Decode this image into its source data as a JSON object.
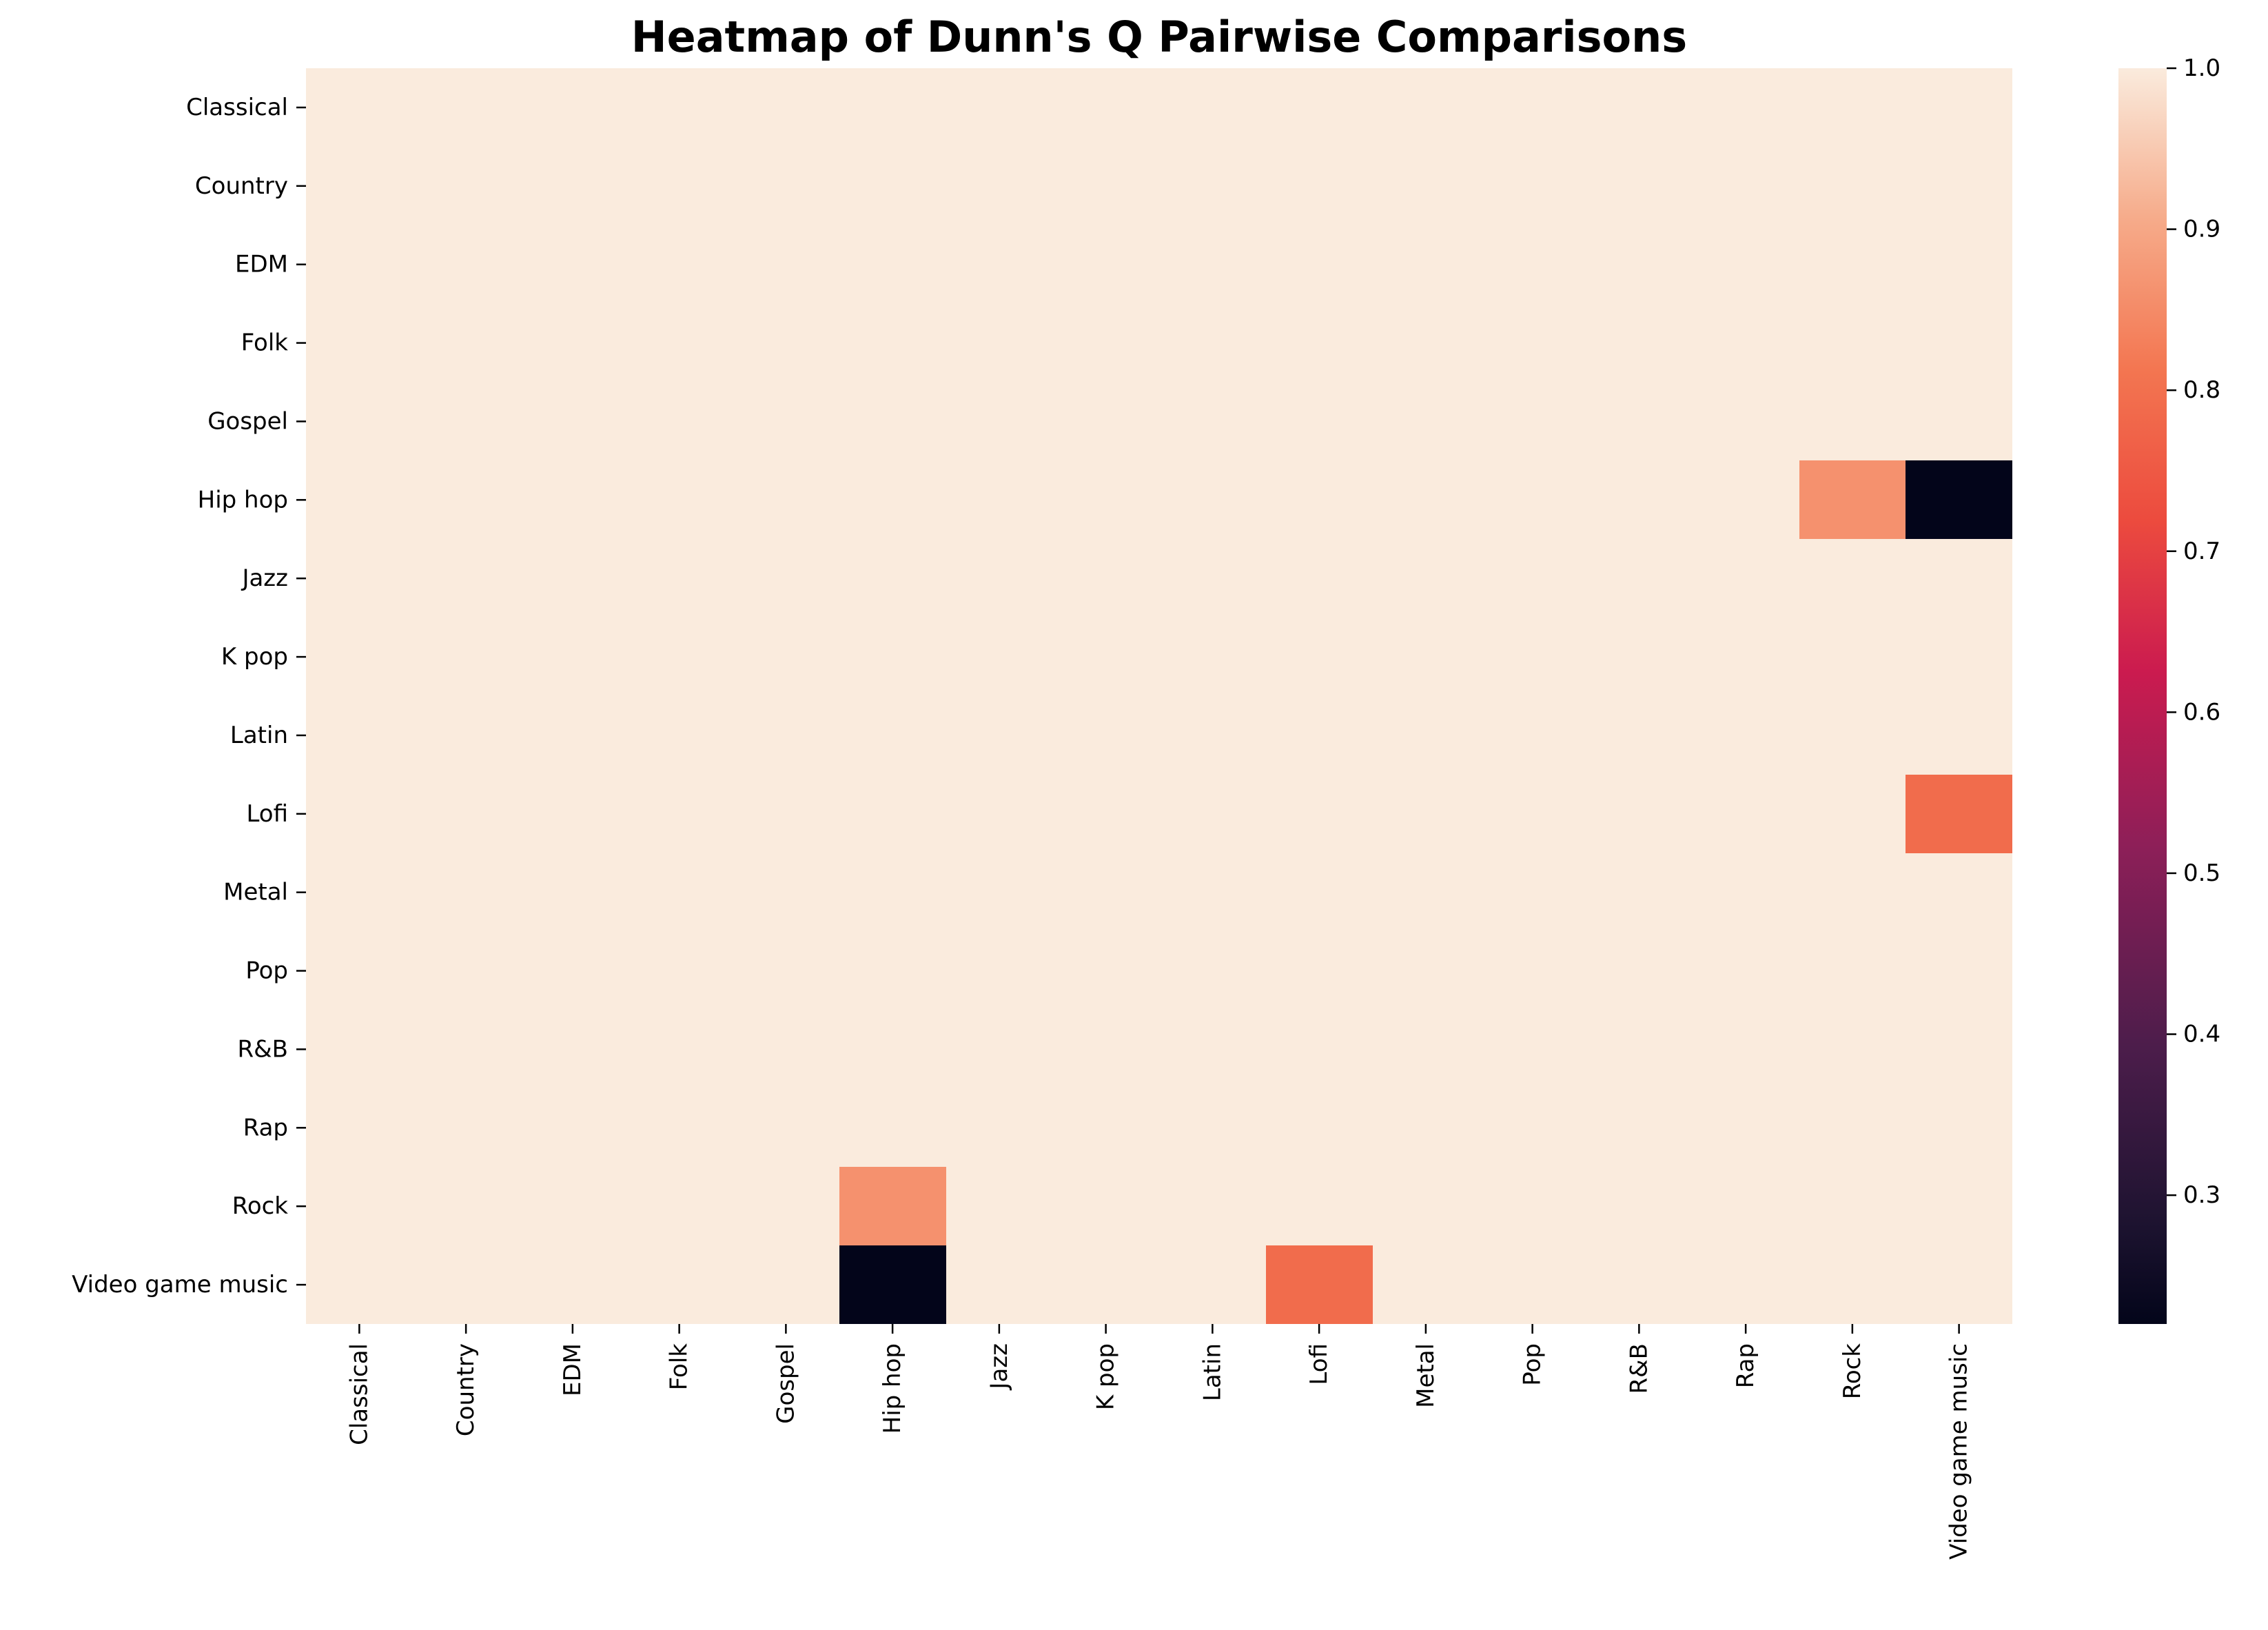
{
  "chart_data": {
    "type": "heatmap",
    "title": "Heatmap of Dunn's Q Pairwise Comparisons",
    "xlabel": "",
    "ylabel": "",
    "rows": [
      "Classical",
      "Country",
      "EDM",
      "Folk",
      "Gospel",
      "Hip hop",
      "Jazz",
      "K pop",
      "Latin",
      "Lofi",
      "Metal",
      "Pop",
      "R&B",
      "Rap",
      "Rock",
      "Video game music"
    ],
    "columns": [
      "Classical",
      "Country",
      "EDM",
      "Folk",
      "Gospel",
      "Hip hop",
      "Jazz",
      "K pop",
      "Latin",
      "Lofi",
      "Metal",
      "Pop",
      "R&B",
      "Rap",
      "Rock",
      "Video game music"
    ],
    "default_value": 1.0,
    "cells": [
      {
        "row": "Hip hop",
        "column": "Rock",
        "value": 0.86
      },
      {
        "row": "Hip hop",
        "column": "Video game music",
        "value": 0.22
      },
      {
        "row": "Lofi",
        "column": "Video game music",
        "value": 0.79
      },
      {
        "row": "Rock",
        "column": "Hip hop",
        "value": 0.86
      },
      {
        "row": "Video game music",
        "column": "Hip hop",
        "value": 0.22
      },
      {
        "row": "Video game music",
        "column": "Lofi",
        "value": 0.79
      }
    ],
    "colorbar": {
      "colormap": "rocket",
      "vmin": 0.22,
      "vmax": 1.0,
      "ticks": [
        1.0,
        0.9,
        0.8,
        0.7,
        0.6,
        0.5,
        0.4,
        0.3
      ],
      "tick_labels": [
        "1.0",
        "0.9",
        "0.8",
        "0.7",
        "0.6",
        "0.5",
        "0.4",
        "0.3"
      ]
    },
    "grid": false,
    "legend": "colorbar right"
  }
}
